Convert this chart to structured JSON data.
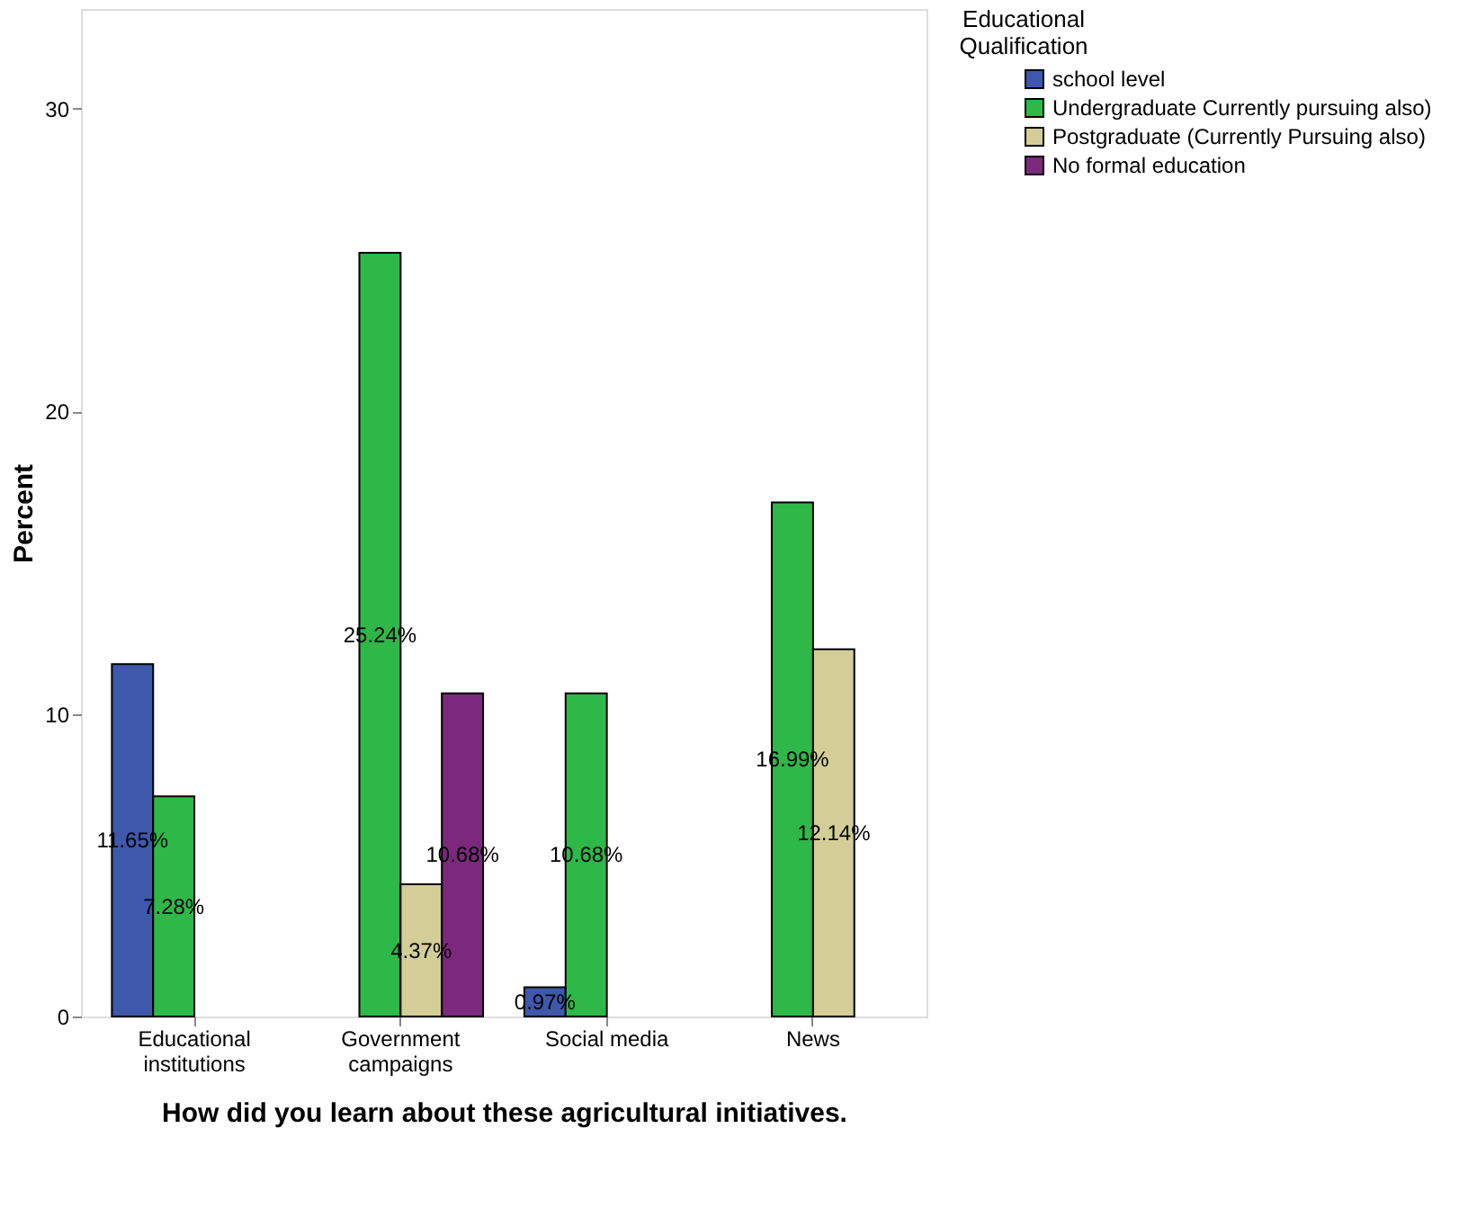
{
  "chart_data": {
    "type": "bar",
    "xlabel": "How did you learn about these agricultural initiatives.",
    "ylabel": "Percent",
    "legend_title": "Educational Qualification",
    "categories": [
      "Educational institutions",
      "Government campaigns",
      "Social media",
      "News"
    ],
    "series": [
      {
        "name": "school level",
        "color": "#3e58ac",
        "values": [
          11.65,
          null,
          0.97,
          null
        ],
        "value_labels": [
          "11.65%",
          null,
          "0.97%",
          null
        ]
      },
      {
        "name": "Undergraduate Currently pursuing also)",
        "color": "#2eb848",
        "values": [
          7.28,
          25.24,
          10.68,
          16.99
        ],
        "value_labels": [
          "7.28%",
          "25.24%",
          "10.68%",
          "16.99%"
        ]
      },
      {
        "name": "Postgraduate (Currently Pursuing also)",
        "color": "#d3ce97",
        "values": [
          null,
          4.37,
          null,
          12.14
        ],
        "value_labels": [
          null,
          "4.37%",
          null,
          "12.14%"
        ]
      },
      {
        "name": "No formal education",
        "color": "#7b287d",
        "values": [
          null,
          10.68,
          null,
          null
        ],
        "value_labels": [
          null,
          "10.68%",
          null,
          null
        ]
      }
    ],
    "ylim": [
      0,
      33.3
    ],
    "yticks": [
      0,
      10,
      20,
      30
    ],
    "grid": false,
    "legend": "top right"
  }
}
